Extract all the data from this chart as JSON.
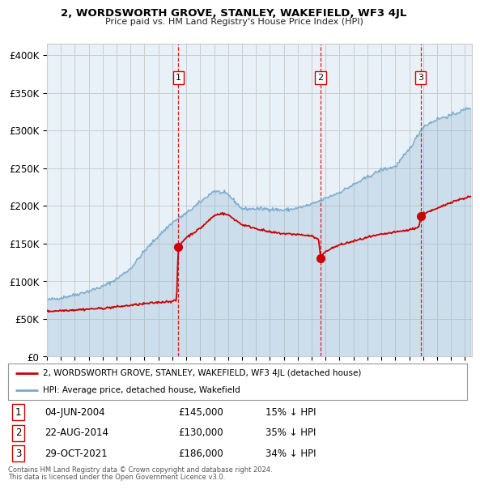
{
  "title": "2, WORDSWORTH GROVE, STANLEY, WAKEFIELD, WF3 4JL",
  "subtitle": "Price paid vs. HM Land Registry's House Price Index (HPI)",
  "ylabel_ticks": [
    "£0",
    "£50K",
    "£100K",
    "£150K",
    "£200K",
    "£250K",
    "£300K",
    "£350K",
    "£400K"
  ],
  "ytick_values": [
    0,
    50000,
    100000,
    150000,
    200000,
    250000,
    300000,
    350000,
    400000
  ],
  "ylim": [
    0,
    415000
  ],
  "xlim_start": 1995.0,
  "xlim_end": 2025.5,
  "transactions": [
    {
      "num": 1,
      "date": "04-JUN-2004",
      "price": 145000,
      "year": 2004.43,
      "pct": "15%",
      "dir": "↓"
    },
    {
      "num": 2,
      "date": "22-AUG-2014",
      "price": 130000,
      "year": 2014.64,
      "pct": "35%",
      "dir": "↓"
    },
    {
      "num": 3,
      "date": "29-OCT-2021",
      "price": 186000,
      "year": 2021.83,
      "pct": "34%",
      "dir": "↓"
    }
  ],
  "legend_line1": "2, WORDSWORTH GROVE, STANLEY, WAKEFIELD, WF3 4JL (detached house)",
  "legend_line2": "HPI: Average price, detached house, Wakefield",
  "footnote1": "Contains HM Land Registry data © Crown copyright and database right 2024.",
  "footnote2": "This data is licensed under the Open Government Licence v3.0.",
  "red_color": "#cc0000",
  "blue_color": "#7aabcc",
  "blue_fill": "#ddeeff",
  "dashed_color": "#cc0000",
  "grid_color": "#cccccc",
  "background_color": "#ffffff",
  "chart_bg": "#e8f0f8"
}
